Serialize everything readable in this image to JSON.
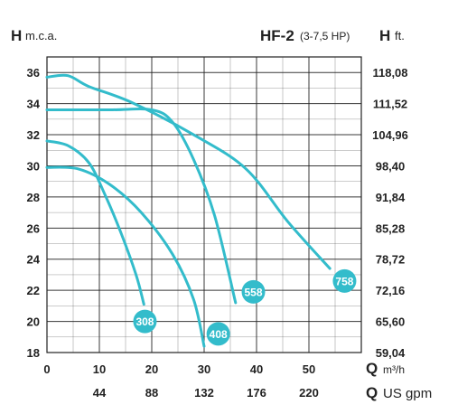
{
  "header": {
    "left_big": "H",
    "left_small": "m.c.a.",
    "model": "HF-2",
    "model_sub": "(3-7,5 HP)",
    "right_big": "H",
    "right_small": "ft."
  },
  "axes": {
    "x1_big": "Q",
    "x1_small": "m³/h",
    "x2_big": "Q",
    "x2_small": "US gpm"
  },
  "colors": {
    "curve": "#33bccb",
    "grid": "#222222",
    "text": "#222222"
  },
  "chart_data": {
    "type": "line",
    "x_ticks": [
      "0",
      "10",
      "20",
      "30",
      "40",
      "50"
    ],
    "x2_ticks": [
      "44",
      "88",
      "132",
      "176",
      "220"
    ],
    "y_ticks": [
      "18",
      "20",
      "22",
      "24",
      "26",
      "28",
      "30",
      "32",
      "34",
      "36"
    ],
    "y2_ticks": [
      "59,04",
      "65,60",
      "72,16",
      "78,72",
      "85,28",
      "91,84",
      "98,40",
      "104,96",
      "111,52",
      "118,08"
    ],
    "xlim": [
      0,
      60
    ],
    "ylim": [
      18,
      37
    ],
    "grid": true,
    "series": [
      {
        "name": "308",
        "x": [
          0,
          4,
          8,
          11,
          14,
          17,
          18.5
        ],
        "y": [
          31.6,
          31.3,
          30.2,
          28.2,
          25.8,
          23.0,
          21.1
        ],
        "label_at": [
          18.7,
          20.0
        ]
      },
      {
        "name": "408",
        "x": [
          0,
          6,
          12,
          18,
          24,
          28,
          30
        ],
        "y": [
          29.9,
          29.8,
          28.8,
          27.0,
          24.3,
          21.4,
          18.4
        ],
        "label_at": [
          32.7,
          19.2
        ]
      },
      {
        "name": "558",
        "x": [
          0,
          12,
          20,
          24,
          28,
          32,
          36
        ],
        "y": [
          33.6,
          33.6,
          33.6,
          32.8,
          30.4,
          26.8,
          21.2
        ],
        "label_at": [
          39.4,
          21.9
        ]
      },
      {
        "name": "758",
        "x": [
          0,
          4,
          8,
          16,
          28,
          38,
          46,
          54
        ],
        "y": [
          35.7,
          35.8,
          35.1,
          34.1,
          32.0,
          29.8,
          26.4,
          23.4
        ],
        "label_at": [
          56.8,
          22.6
        ]
      }
    ]
  }
}
